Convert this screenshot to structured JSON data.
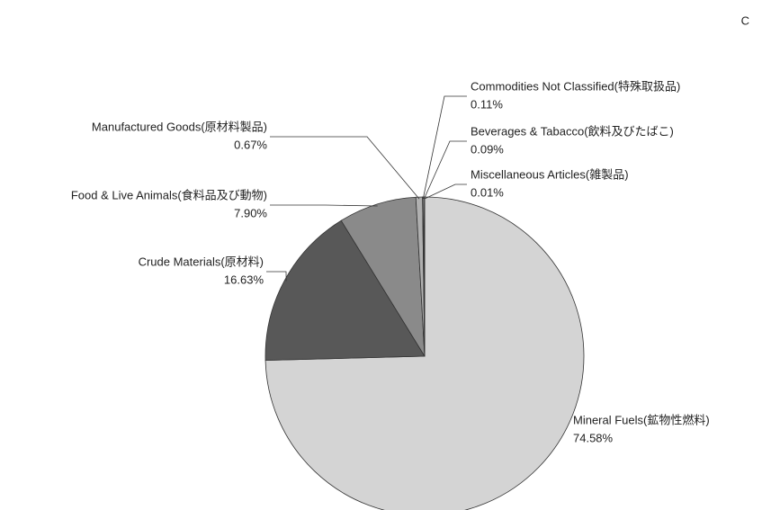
{
  "chart_data": {
    "type": "pie",
    "title": "C",
    "categories": [
      "Mineral Fuels(鉱物性燃料)",
      "Crude Materials(原材料)",
      "Food & Live Animals(食料品及び動物)",
      "Manufactured Goods(原材料製品)",
      "Commodities Not Classified(特殊取扱品)",
      "Beverages & Tabacco(飲料及びたばこ)",
      "Miscellaneous Articles(雑製品)"
    ],
    "values": [
      74.58,
      16.63,
      7.9,
      0.67,
      0.11,
      0.09,
      0.01
    ],
    "value_labels": [
      "74.58%",
      "16.63%",
      "7.90%",
      "0.67%",
      "0.11%",
      "0.09%",
      "0.01%"
    ],
    "colors": [
      "#d4d4d4",
      "#585858",
      "#8a8a8a",
      "#b0b0b0",
      "#c8c8c8",
      "#e0e0e0",
      "#f0f0f0"
    ]
  }
}
